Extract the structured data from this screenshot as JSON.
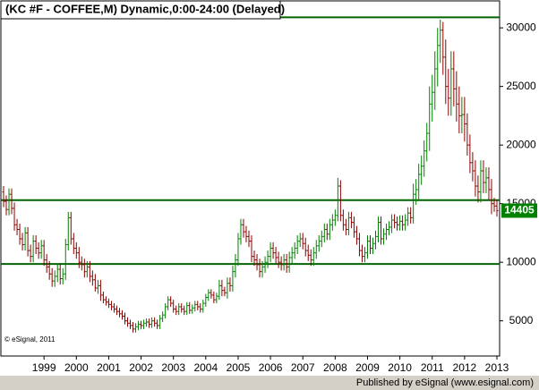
{
  "chart_data": {
    "type": "ohlc",
    "title": "(KC #F - COFFEE,M) Dynamic,0:00-24:00 (Delayed)",
    "copyright": "© eSignal, 2011",
    "footer": "Published by eSignal (www.esignal.com)",
    "up_color": "#008000",
    "down_color": "#8b0000",
    "hline_color": "#006400",
    "hlines": [
      30900,
      15300,
      9850
    ],
    "ylim": [
      2000,
      32300
    ],
    "yticks": [
      5000,
      10000,
      15000,
      20000,
      25000,
      30000
    ],
    "categories": [
      null,
      null,
      null,
      null,
      null,
      null,
      null,
      null,
      null,
      null,
      null,
      null,
      null,
      null,
      null,
      "1999",
      null,
      null,
      null,
      null,
      null,
      null,
      null,
      null,
      null,
      null,
      null,
      "2000",
      null,
      null,
      null,
      null,
      null,
      null,
      null,
      null,
      null,
      null,
      null,
      "2001",
      null,
      null,
      null,
      null,
      null,
      null,
      null,
      null,
      null,
      null,
      null,
      "2002",
      null,
      null,
      null,
      null,
      null,
      null,
      null,
      null,
      null,
      null,
      null,
      "2003",
      null,
      null,
      null,
      null,
      null,
      null,
      null,
      null,
      null,
      null,
      null,
      "2004",
      null,
      null,
      null,
      null,
      null,
      null,
      null,
      null,
      null,
      null,
      null,
      "2005",
      null,
      null,
      null,
      null,
      null,
      null,
      null,
      null,
      null,
      null,
      null,
      "2006",
      null,
      null,
      null,
      null,
      null,
      null,
      null,
      null,
      null,
      null,
      null,
      "2007",
      null,
      null,
      null,
      null,
      null,
      null,
      null,
      null,
      null,
      null,
      null,
      "2008",
      null,
      null,
      null,
      null,
      null,
      null,
      null,
      null,
      null,
      null,
      null,
      "2009",
      null,
      null,
      null,
      null,
      null,
      null,
      null,
      null,
      null,
      null,
      null,
      "2010",
      null,
      null,
      null,
      null,
      null,
      null,
      null,
      null,
      null,
      null,
      null,
      "2011",
      null,
      null,
      null,
      null,
      null,
      null,
      null,
      null,
      null,
      null,
      null,
      "2012",
      null,
      null,
      null,
      null,
      null,
      null,
      null,
      null,
      null,
      null,
      null,
      "2013"
    ],
    "open": [
      16000,
      15200,
      14500,
      15800,
      14600,
      13200,
      12800,
      12000,
      11500,
      12500,
      11000,
      10500,
      11800,
      11200,
      10800,
      11400,
      10200,
      9600,
      9000,
      8400,
      8800,
      9400,
      8600,
      9000,
      11500,
      13800,
      12000,
      11200,
      10800,
      10000,
      9800,
      9200,
      9600,
      8800,
      8500,
      7800,
      8000,
      7200,
      6800,
      6600,
      6400,
      6200,
      6000,
      5800,
      5600,
      5400,
      5000,
      4800,
      4600,
      4300,
      4500,
      4700,
      4600,
      4800,
      4900,
      4700,
      5000,
      4800,
      4600,
      5200,
      5500,
      6200,
      6800,
      6500,
      6000,
      5800,
      6200,
      6000,
      5800,
      6300,
      5900,
      6100,
      6400,
      6200,
      6000,
      6500,
      7000,
      7400,
      7200,
      6800,
      7100,
      8000,
      7600,
      7400,
      8200,
      8000,
      9200,
      10200,
      12000,
      13200,
      12600,
      12200,
      11800,
      10500,
      10200,
      9800,
      9200,
      9600,
      10000,
      10500,
      11200,
      10800,
      10400,
      10000,
      9800,
      10200,
      9600,
      10400,
      10800,
      11200,
      11800,
      12000,
      11600,
      11000,
      10600,
      10200,
      10800,
      11400,
      11800,
      12200,
      12800,
      12400,
      13200,
      13600,
      14000,
      16500,
      14000,
      13200,
      12800,
      13800,
      13400,
      12600,
      12000,
      11000,
      10500,
      10800,
      11800,
      11200,
      11600,
      12200,
      13400,
      12000,
      12400,
      12800,
      13000,
      13600,
      13400,
      13200,
      13500,
      13200,
      13600,
      14200,
      13800,
      15800,
      16200,
      17500,
      18200,
      19500,
      21000,
      23500,
      24500,
      26500,
      28500,
      29800,
      27500,
      25000,
      24000,
      26500,
      24800,
      23500,
      22500,
      22600,
      21800,
      20000,
      18500,
      17800,
      16500,
      16000,
      17800,
      16800,
      17200,
      16200,
      15000,
      14800
    ],
    "high": [
      16500,
      15700,
      16300,
      16300,
      15100,
      13700,
      13300,
      12500,
      13000,
      13000,
      11500,
      12300,
      12300,
      11700,
      11900,
      11900,
      10700,
      10100,
      9500,
      9300,
      9900,
      9900,
      9500,
      12000,
      14300,
      14300,
      12500,
      11700,
      11300,
      10500,
      10300,
      10100,
      10100,
      9300,
      9000,
      8500,
      8500,
      7500,
      7100,
      6900,
      6700,
      6500,
      6300,
      6100,
      5900,
      5700,
      5300,
      5100,
      4900,
      4800,
      5000,
      5000,
      5100,
      5200,
      5200,
      5300,
      5300,
      5100,
      5500,
      5800,
      6500,
      7100,
      7100,
      6800,
      6300,
      6500,
      6500,
      6300,
      6600,
      6600,
      6400,
      6700,
      6700,
      6500,
      6800,
      7300,
      7700,
      7700,
      7500,
      7400,
      8500,
      8500,
      7900,
      8700,
      8700,
      9700,
      10700,
      12500,
      13700,
      13700,
      13100,
      12700,
      12300,
      11000,
      10700,
      10300,
      10100,
      10500,
      11000,
      11700,
      11700,
      11300,
      10900,
      10500,
      10700,
      10700,
      10900,
      11300,
      11700,
      12300,
      12500,
      12500,
      12100,
      11500,
      11100,
      11300,
      11900,
      12300,
      12700,
      13300,
      13300,
      13700,
      14100,
      14500,
      17200,
      17000,
      14500,
      13700,
      14300,
      14300,
      13900,
      13100,
      12500,
      11500,
      11300,
      12300,
      12300,
      12100,
      12700,
      13900,
      13900,
      12900,
      13300,
      13500,
      14100,
      14100,
      13900,
      14000,
      14000,
      14100,
      14700,
      14700,
      16700,
      17100,
      18400,
      19100,
      20400,
      21900,
      25000,
      26000,
      28000,
      30000,
      30700,
      30500,
      29000,
      26500,
      28000,
      28000,
      26300,
      25000,
      24100,
      24100,
      22700,
      20900,
      19400,
      18700,
      17400,
      18700,
      18700,
      18100,
      18100,
      17100,
      15500,
      15300
    ],
    "low": [
      14700,
      14000,
      14000,
      14100,
      12700,
      12300,
      11500,
      11000,
      11000,
      10500,
      10000,
      10000,
      10700,
      10300,
      10300,
      9700,
      9100,
      8500,
      7900,
      7900,
      8300,
      8100,
      8100,
      8500,
      11000,
      11500,
      10700,
      10300,
      9500,
      9300,
      8700,
      8700,
      8300,
      8000,
      7500,
      7300,
      6700,
      6500,
      6300,
      6100,
      5900,
      5700,
      5500,
      5300,
      5100,
      4700,
      4500,
      4300,
      4000,
      4000,
      4200,
      4300,
      4300,
      4500,
      4400,
      4400,
      4500,
      4300,
      4300,
      4900,
      5200,
      5900,
      6200,
      5700,
      5500,
      5500,
      5700,
      5500,
      5500,
      5600,
      5600,
      5800,
      5900,
      5700,
      5700,
      6200,
      6700,
      6900,
      6500,
      6500,
      6800,
      7100,
      7100,
      6900,
      7500,
      7500,
      8700,
      9700,
      11500,
      12100,
      11700,
      11300,
      10000,
      9700,
      9300,
      8700,
      8700,
      9100,
      9500,
      10000,
      10300,
      9900,
      9500,
      9300,
      9300,
      9100,
      9100,
      9900,
      10300,
      10700,
      11300,
      11100,
      10500,
      10100,
      9700,
      9700,
      10300,
      10900,
      11300,
      11700,
      11900,
      11900,
      12700,
      13100,
      13500,
      13500,
      12700,
      12300,
      12300,
      12900,
      12100,
      11500,
      10500,
      10000,
      10000,
      10300,
      10700,
      10700,
      11100,
      11700,
      11500,
      11500,
      11900,
      12300,
      12500,
      12900,
      12700,
      12700,
      12700,
      12700,
      13100,
      13300,
      13300,
      14900,
      15300,
      16600,
      17300,
      18600,
      19500,
      22000,
      23000,
      25000,
      27000,
      26000,
      23500,
      22500,
      22500,
      23300,
      22000,
      21000,
      21000,
      20300,
      19100,
      17600,
      16900,
      15600,
      15100,
      15100,
      15900,
      15900,
      15300,
      14100,
      14300,
      13900
    ],
    "close": [
      15200,
      14500,
      15800,
      14600,
      13200,
      12800,
      12000,
      11500,
      12500,
      11000,
      10500,
      11800,
      11200,
      10800,
      11400,
      10200,
      9600,
      9000,
      8400,
      8800,
      9400,
      8600,
      9000,
      11500,
      13800,
      12000,
      11200,
      10800,
      10000,
      9800,
      9200,
      9600,
      8800,
      8500,
      7800,
      8000,
      7200,
      6800,
      6600,
      6400,
      6200,
      6000,
      5800,
      5600,
      5400,
      5000,
      4800,
      4600,
      4300,
      4500,
      4700,
      4600,
      4800,
      4900,
      4700,
      5000,
      4800,
      4600,
      5200,
      5500,
      6200,
      6800,
      6500,
      6000,
      5800,
      6200,
      6000,
      5800,
      6300,
      5900,
      6100,
      6400,
      6200,
      6000,
      6500,
      7000,
      7400,
      7200,
      6800,
      7100,
      8000,
      7600,
      7400,
      8200,
      8000,
      9200,
      10200,
      12000,
      13200,
      12600,
      12200,
      11800,
      10500,
      10200,
      9800,
      9200,
      9600,
      10000,
      10500,
      11200,
      10800,
      10400,
      10000,
      9800,
      10200,
      9600,
      10400,
      10800,
      11200,
      11800,
      12000,
      11600,
      11000,
      10600,
      10200,
      10800,
      11400,
      11800,
      12200,
      12800,
      12400,
      13200,
      13600,
      14000,
      16500,
      14000,
      13200,
      12800,
      13800,
      13400,
      12600,
      12000,
      11000,
      10500,
      10800,
      11800,
      11200,
      11600,
      12200,
      13400,
      12000,
      12400,
      12800,
      13000,
      13600,
      13400,
      13200,
      13500,
      13200,
      13600,
      14200,
      13800,
      15800,
      16200,
      17500,
      18200,
      19500,
      21000,
      23500,
      24500,
      26500,
      28500,
      29800,
      27500,
      25000,
      24000,
      26500,
      24800,
      23500,
      22500,
      22600,
      21800,
      20000,
      18500,
      17800,
      16500,
      16000,
      17800,
      16800,
      17200,
      16200,
      15000,
      14800,
      14405
    ]
  }
}
